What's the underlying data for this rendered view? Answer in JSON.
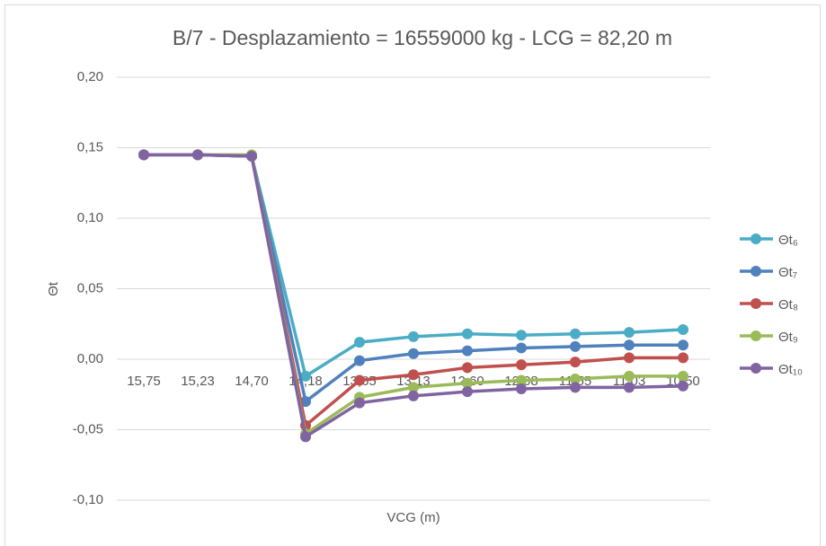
{
  "chart_data": {
    "type": "line",
    "title": "B/7 - Desplazamiento = 16559000 kg - LCG = 82,20 m",
    "x_label": "VCG (m)",
    "y_label": "Θt",
    "categories": [
      "15,75",
      "15,23",
      "14,70",
      "14,18",
      "13,65",
      "13,13",
      "12,60",
      "12,08",
      "11,55",
      "11,03",
      "10,50"
    ],
    "series": [
      {
        "name": "Θt₆",
        "color": "#4bacc6",
        "values": [
          0.145,
          0.145,
          0.144,
          -0.012,
          0.012,
          0.016,
          0.018,
          0.017,
          0.018,
          0.019,
          0.021
        ]
      },
      {
        "name": "Θt₇",
        "color": "#4f81bd",
        "values": [
          0.145,
          0.145,
          0.144,
          -0.03,
          -0.001,
          0.004,
          0.006,
          0.008,
          0.009,
          0.01,
          0.01
        ]
      },
      {
        "name": "Θt₈",
        "color": "#c0504d",
        "values": [
          0.145,
          0.145,
          0.144,
          -0.047,
          -0.015,
          -0.011,
          -0.006,
          -0.004,
          -0.002,
          0.001,
          0.001
        ]
      },
      {
        "name": "Θt₉",
        "color": "#9bbb59",
        "values": [
          0.145,
          0.145,
          0.145,
          -0.053,
          -0.027,
          -0.02,
          -0.017,
          -0.015,
          -0.014,
          -0.012,
          -0.012
        ]
      },
      {
        "name": "Θt₁₀",
        "color": "#8064a2",
        "values": [
          0.145,
          0.145,
          0.144,
          -0.055,
          -0.031,
          -0.026,
          -0.023,
          -0.021,
          -0.02,
          -0.02,
          -0.019
        ]
      }
    ],
    "ylim": [
      -0.1,
      0.2
    ],
    "yticks": [
      {
        "value": -0.1,
        "label": "-0,10"
      },
      {
        "value": -0.05,
        "label": "-0,05"
      },
      {
        "value": 0,
        "label": "0,00"
      },
      {
        "value": 0.05,
        "label": "0,05"
      },
      {
        "value": 0.1,
        "label": "0,10"
      },
      {
        "value": 0.15,
        "label": "0,15"
      },
      {
        "value": 0.2,
        "label": "0,20"
      }
    ],
    "grid": true,
    "legend": "right"
  }
}
